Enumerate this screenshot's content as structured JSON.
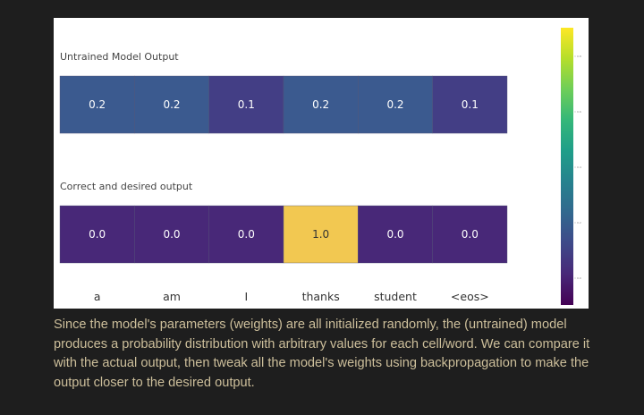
{
  "chart_data": {
    "type": "heatmap",
    "x_categories": [
      "a",
      "am",
      "I",
      "thanks",
      "student",
      "<eos>"
    ],
    "rows": [
      {
        "title": "Untrained Model Output",
        "values": [
          0.2,
          0.2,
          0.1,
          0.2,
          0.2,
          0.1
        ],
        "labels": [
          "0.2",
          "0.2",
          "0.1",
          "0.2",
          "0.2",
          "0.1"
        ]
      },
      {
        "title": "Correct and desired output",
        "values": [
          0.0,
          0.0,
          0.0,
          1.0,
          0.0,
          0.0
        ],
        "labels": [
          "0.0",
          "0.0",
          "0.0",
          "1.0",
          "0.0",
          "0.0"
        ]
      }
    ],
    "colorscale": "viridis",
    "value_range": [
      0,
      1
    ],
    "colorbar_ticks": [
      "0.8",
      "0.6",
      "0.4",
      "0.2",
      "0.0"
    ],
    "colors": {
      "0.0": "#482878",
      "0.1": "#433e85",
      "0.2": "#3b5a8f",
      "1.0": "#f2c851",
      "colorbar_top": "#fde725",
      "colorbar_bottom": "#440154"
    }
  },
  "caption": "Since the model's parameters (weights) are all initialized randomly, the (untrained) model produces a probability distribution with arbitrary values for each cell/word. We can compare it with the actual output, then tweak all the model's weights using backpropagation to make the output closer to the desired output."
}
